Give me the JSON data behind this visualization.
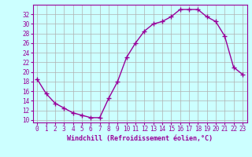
{
  "x": [
    0,
    1,
    2,
    3,
    4,
    5,
    6,
    7,
    8,
    9,
    10,
    11,
    12,
    13,
    14,
    15,
    16,
    17,
    18,
    19,
    20,
    21,
    22,
    23
  ],
  "y": [
    18.5,
    15.5,
    13.5,
    12.5,
    11.5,
    11.0,
    10.5,
    10.5,
    14.5,
    18.0,
    23.0,
    26.0,
    28.5,
    30.0,
    30.5,
    31.5,
    33.0,
    33.0,
    33.0,
    31.5,
    30.5,
    27.5,
    21.0,
    19.5
  ],
  "xlabel": "Windchill (Refroidissement éolien,°C)",
  "xticks": [
    0,
    1,
    2,
    3,
    4,
    5,
    6,
    7,
    8,
    9,
    10,
    11,
    12,
    13,
    14,
    15,
    16,
    17,
    18,
    19,
    20,
    21,
    22,
    23
  ],
  "yticks": [
    10,
    12,
    14,
    16,
    18,
    20,
    22,
    24,
    26,
    28,
    30,
    32
  ],
  "ylim": [
    9.5,
    34.0
  ],
  "xlim": [
    -0.5,
    23.5
  ],
  "line_color": "#990099",
  "marker": "+",
  "marker_size": 4,
  "bg_color": "#ccffff",
  "grid_color": "#b0b0b0",
  "label_color": "#990099",
  "tick_color": "#990099",
  "line_width": 1.0,
  "tick_fontsize": 5.5,
  "xlabel_fontsize": 6.0
}
